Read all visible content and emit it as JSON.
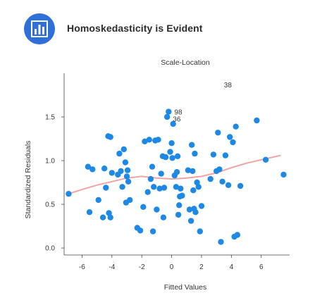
{
  "header": {
    "title": "Homoskedasticity is Evident",
    "icon": "bar-chart-icon",
    "accent": "#2f6fd8"
  },
  "chart_data": {
    "type": "scatter",
    "title": "Scale-Location",
    "xlabel": "Fitted Values",
    "ylabel": "Standardized Residuals",
    "xlim": [
      -7.2,
      7.9
    ],
    "ylim": [
      -0.08,
      2.0
    ],
    "xticks": [
      -6,
      -4,
      -2,
      0,
      2,
      4,
      6
    ],
    "yticks": [
      0.0,
      0.5,
      1.0,
      1.5
    ],
    "ytick_labels": [
      "0.0",
      "0.5",
      "1.0",
      "1.5"
    ],
    "grid": false,
    "point_color": "#1e88e5",
    "smooth_color": "#f2a3a6",
    "x": [
      -6.9,
      -5.6,
      -5.3,
      -5.5,
      -4.9,
      -4.6,
      -4.5,
      -4.4,
      -4.25,
      -4.1,
      -4.2,
      -4.1,
      -4.0,
      -3.6,
      -3.5,
      -3.4,
      -3.3,
      -3.2,
      -3.1,
      -3.05,
      -3.0,
      -2.95,
      -2.9,
      -2.8,
      -2.1,
      -2.3,
      -1.9,
      -1.8,
      -1.6,
      -1.5,
      -1.4,
      -1.3,
      -1.25,
      -1.2,
      -1.1,
      -1.0,
      -0.9,
      -0.8,
      -0.7,
      -0.6,
      -0.55,
      -0.5,
      -0.4,
      -0.3,
      -0.2,
      -0.1,
      0.0,
      0.05,
      0.1,
      0.2,
      0.3,
      0.35,
      0.4,
      0.45,
      0.5,
      0.55,
      0.6,
      0.7,
      1.1,
      1.2,
      1.3,
      1.35,
      1.4,
      1.45,
      1.5,
      1.55,
      1.6,
      1.7,
      1.8,
      1.9,
      2.0,
      2.6,
      2.8,
      3.0,
      3.1,
      3.2,
      3.3,
      3.4,
      3.6,
      3.8,
      3.9,
      4.1,
      4.2,
      4.3,
      4.4,
      4.6,
      5.7,
      6.3,
      7.5
    ],
    "y": [
      0.62,
      0.93,
      0.9,
      0.41,
      0.55,
      0.35,
      0.91,
      0.69,
      1.28,
      0.35,
      0.4,
      1.27,
      0.86,
      0.84,
      1.08,
      0.88,
      0.7,
      1.13,
      0.98,
      0.52,
      0.82,
      0.89,
      0.76,
      0.55,
      0.2,
      0.23,
      0.47,
      1.22,
      0.64,
      1.24,
      0.79,
      0.93,
      0.19,
      0.7,
      1.23,
      0.44,
      1.24,
      0.68,
      0.85,
      1.05,
      0.35,
      0.69,
      1.04,
      1.5,
      1.56,
      1.1,
      1.2,
      1.03,
      1.42,
      0.83,
      0.7,
      0.87,
      1.05,
      0.38,
      0.49,
      0.59,
      0.68,
      0.6,
      0.89,
      0.44,
      0.31,
      1.18,
      0.88,
      0.66,
      0.45,
      1.08,
      0.41,
      0.75,
      0.7,
      0.19,
      0.48,
      0.79,
      1.07,
      0.88,
      1.32,
      0.9,
      0.07,
      0.76,
      1.06,
      0.72,
      1.27,
      1.21,
      0.13,
      1.39,
      0.15,
      0.71,
      1.46,
      1.01,
      0.84
    ],
    "smooth": [
      [
        -6.9,
        0.62
      ],
      [
        -6,
        0.67
      ],
      [
        -5,
        0.72
      ],
      [
        -4,
        0.76
      ],
      [
        -3,
        0.8
      ],
      [
        -2,
        0.82
      ],
      [
        -1,
        0.8
      ],
      [
        0,
        0.79
      ],
      [
        1,
        0.8
      ],
      [
        2,
        0.82
      ],
      [
        3,
        0.86
      ],
      [
        4,
        0.92
      ],
      [
        5,
        0.97
      ],
      [
        6,
        1.01
      ],
      [
        7.3,
        1.06
      ]
    ],
    "annotations": [
      {
        "label": "38",
        "x": 4.35,
        "y": 1.87
      },
      {
        "label": "98",
        "x": -0.15,
        "y": 1.56
      },
      {
        "label": "36",
        "x": -0.25,
        "y": 1.48
      }
    ]
  }
}
